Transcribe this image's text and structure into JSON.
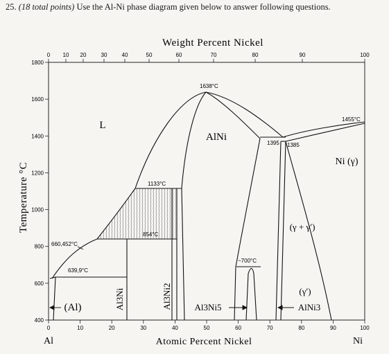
{
  "question": {
    "number": "25.",
    "points": "(18 total points)",
    "text": "Use the Al-Ni phase diagram given below to answer following questions."
  },
  "diagram": {
    "top_axis_title": "Weight Percent Nickel",
    "bottom_axis_title": "Atomic Percent Nickel",
    "y_axis_title": "Temperature °C",
    "left_element": "Al",
    "right_element": "Ni",
    "top_ticks": [
      "0",
      "10",
      "20",
      "30",
      "40",
      "50",
      "60",
      "70",
      "80",
      "90",
      "100"
    ],
    "bottom_ticks": [
      "0",
      "10",
      "20",
      "30",
      "40",
      "50",
      "60",
      "70",
      "80",
      "90",
      "100"
    ],
    "y_ticks": [
      "400",
      "600",
      "800",
      "1000",
      "1200",
      "1400",
      "1600",
      "1800"
    ],
    "regions": {
      "liquid": "L",
      "alni": "AlNi",
      "ni_gamma": "Ni (γ)",
      "gamma_plus_gamma_prime": "(γ + γ′)",
      "gamma_prime": "(γ′)",
      "al_solid": "(Al)",
      "al3ni": "Al3Ni",
      "al3ni2": "Al3Ni2",
      "al3ni5": "Al3Ni5",
      "alni3": "AlNi3"
    },
    "temperatures": {
      "t1638": "1638°C",
      "t1455": "1455°C",
      "t1395": "1395",
      "t1385": "1385",
      "t1133": "1133°C",
      "t854": "854°C",
      "t660": "660,452°C",
      "t639": "639,9°C",
      "t700": "~700°C"
    }
  }
}
